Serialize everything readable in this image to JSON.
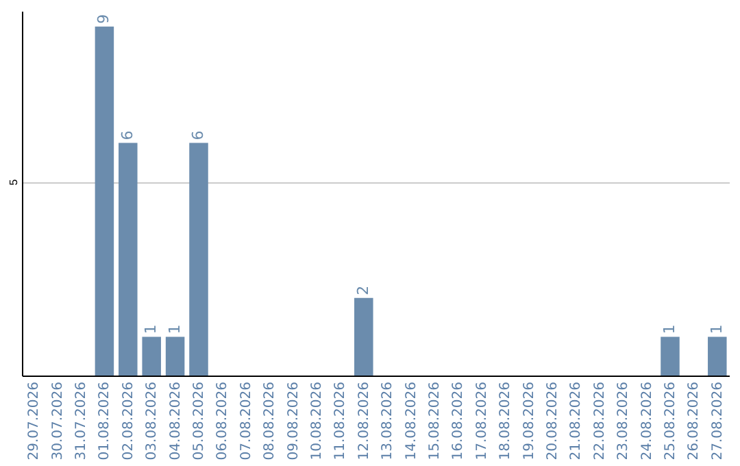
{
  "chart_data": {
    "type": "bar",
    "categories": [
      "29.07.2026",
      "30.07.2026",
      "31.07.2026",
      "01.08.2026",
      "02.08.2026",
      "03.08.2026",
      "04.08.2026",
      "05.08.2026",
      "06.08.2026",
      "07.08.2026",
      "08.08.2026",
      "09.08.2026",
      "10.08.2026",
      "11.08.2026",
      "12.08.2026",
      "13.08.2026",
      "14.08.2026",
      "15.08.2026",
      "16.08.2026",
      "17.08.2026",
      "18.08.2026",
      "19.08.2026",
      "20.08.2026",
      "21.08.2026",
      "22.08.2026",
      "23.08.2026",
      "24.08.2026",
      "25.08.2026",
      "26.08.2026",
      "27.08.2026"
    ],
    "values": [
      0,
      0,
      0,
      9,
      6,
      1,
      1,
      6,
      0,
      0,
      0,
      0,
      0,
      0,
      2,
      0,
      0,
      0,
      0,
      0,
      0,
      0,
      0,
      0,
      0,
      0,
      0,
      1,
      0,
      1
    ],
    "value_labels": [
      null,
      null,
      null,
      "9",
      "6",
      "1",
      "1",
      "6",
      null,
      null,
      null,
      null,
      null,
      null,
      "2",
      null,
      null,
      null,
      null,
      null,
      null,
      null,
      null,
      null,
      null,
      null,
      null,
      "1",
      null,
      "1"
    ],
    "color": "#6b8cad",
    "ylim": [
      0,
      9.4
    ],
    "yticks": [
      5
    ],
    "grid": "y"
  }
}
